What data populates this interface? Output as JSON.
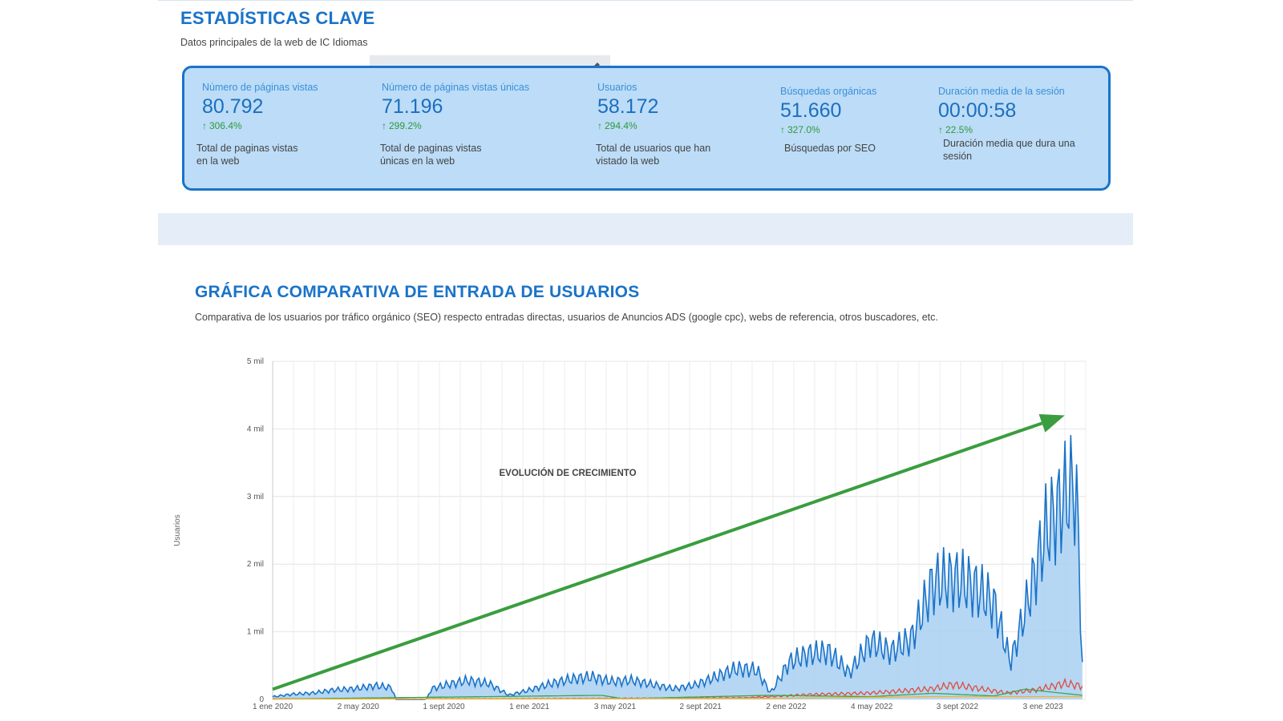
{
  "key_stats": {
    "title": "ESTADÍSTICAS CLAVE",
    "subtitle": "Datos principales de la web de IC Idiomas",
    "items": [
      {
        "label": "Número de páginas vistas",
        "value": "80.792",
        "delta": "306.4%",
        "desc1": "Total de paginas vistas",
        "desc2": "en la web"
      },
      {
        "label": "Número de páginas vistas únicas",
        "value": "71.196",
        "delta": "299.2%",
        "desc1": "Total de paginas vistas",
        "desc2": "únicas en la web"
      },
      {
        "label": "Usuarios",
        "value": "58.172",
        "delta": "294.4%",
        "desc1": "Total de usuarios que han",
        "desc2": "vistado la web"
      },
      {
        "label": "Búsquedas orgánicas",
        "value": "51.660",
        "delta": "327.0%",
        "desc1": "Búsquedas por SEO",
        "desc2": ""
      },
      {
        "label": "Duración media de la sesión",
        "value": "00:00:58",
        "delta": "22.5%",
        "desc1": "Duración media que dura una",
        "desc2": "sesión"
      }
    ],
    "colors": {
      "box_bg": "#bcdcf7",
      "box_border": "#1a73c8",
      "delta": "#2e9a3c"
    }
  },
  "chart_section": {
    "title": "GRÁFICA COMPARATIVA DE ENTRADA DE USUARIOS",
    "subtitle": "Comparativa de los usuarios por tráfico orgánico (SEO) respecto entradas directas, usuarios de Anuncios ADS (google cpc), webs de referencia, otros buscadores, etc."
  },
  "chart_data": {
    "type": "area",
    "ylabel": "Usuarios",
    "annotation": "EVOLUCIÓN DE CRECIMIENTO",
    "ylim": [
      0,
      5000
    ],
    "yticks": [
      0,
      1000,
      2000,
      3000,
      4000,
      5000
    ],
    "ytick_labels": [
      "0",
      "1 mil",
      "2 mil",
      "3 mil",
      "4 mil",
      "5 mil"
    ],
    "xticks": [
      "1 ene 2020",
      "2 may 2020",
      "1 sept 2020",
      "1 ene 2021",
      "3 may 2021",
      "2 sept 2021",
      "2 ene 2022",
      "4 may 2022",
      "3 sept 2022",
      "3 ene 2023"
    ],
    "xlim": [
      "2020-01-01",
      "2023-04-15"
    ],
    "grid": true,
    "trend_arrow": {
      "color": "#3a9d3f",
      "from": [
        "2020-01-01",
        150
      ],
      "to": [
        "2023-03-15",
        4200
      ]
    },
    "series": [
      {
        "color": "#1a73c8",
        "fill": "#a9d0f2",
        "points": [
          [
            "2020-01-01",
            50
          ],
          [
            "2020-02-01",
            100
          ],
          [
            "2020-03-01",
            120
          ],
          [
            "2020-04-01",
            180
          ],
          [
            "2020-05-01",
            200
          ],
          [
            "2020-06-01",
            260
          ],
          [
            "2020-06-25",
            220
          ],
          [
            "2020-07-01",
            0
          ],
          [
            "2020-08-15",
            0
          ],
          [
            "2020-08-22",
            200
          ],
          [
            "2020-09-15",
            280
          ],
          [
            "2020-10-15",
            360
          ],
          [
            "2020-11-15",
            300
          ],
          [
            "2020-12-15",
            80
          ],
          [
            "2021-01-15",
            180
          ],
          [
            "2021-02-15",
            300
          ],
          [
            "2021-03-15",
            380
          ],
          [
            "2021-04-15",
            430
          ],
          [
            "2021-05-15",
            340
          ],
          [
            "2021-06-15",
            360
          ],
          [
            "2021-07-15",
            280
          ],
          [
            "2021-08-15",
            200
          ],
          [
            "2021-09-15",
            270
          ],
          [
            "2021-10-15",
            420
          ],
          [
            "2021-11-15",
            580
          ],
          [
            "2021-12-15",
            560
          ],
          [
            "2022-01-05",
            120
          ],
          [
            "2022-02-01",
            700
          ],
          [
            "2022-03-01",
            860
          ],
          [
            "2022-04-01",
            900
          ],
          [
            "2022-05-01",
            500
          ],
          [
            "2022-06-01",
            1100
          ],
          [
            "2022-07-01",
            900
          ],
          [
            "2022-08-01",
            1150
          ],
          [
            "2022-09-01",
            2200
          ],
          [
            "2022-10-01",
            2300
          ],
          [
            "2022-11-01",
            2150
          ],
          [
            "2022-12-01",
            1800
          ],
          [
            "2022-12-25",
            700
          ],
          [
            "2023-01-15",
            1650
          ],
          [
            "2023-02-15",
            3200
          ],
          [
            "2023-03-20",
            3950
          ],
          [
            "2023-04-01",
            4000
          ],
          [
            "2023-04-10",
            700
          ]
        ]
      },
      {
        "color": "#e04b3c",
        "points": [
          [
            "2020-01-01",
            10
          ],
          [
            "2021-01-01",
            15
          ],
          [
            "2021-12-01",
            30
          ],
          [
            "2022-03-01",
            90
          ],
          [
            "2022-06-01",
            120
          ],
          [
            "2022-09-01",
            200
          ],
          [
            "2022-10-01",
            280
          ],
          [
            "2022-11-01",
            220
          ],
          [
            "2022-12-20",
            120
          ],
          [
            "2023-02-01",
            180
          ],
          [
            "2023-03-15",
            300
          ],
          [
            "2023-04-10",
            250
          ]
        ]
      },
      {
        "color": "#3aa64b",
        "points": [
          [
            "2020-01-01",
            5
          ],
          [
            "2021-05-01",
            60
          ],
          [
            "2021-06-01",
            10
          ],
          [
            "2022-01-01",
            60
          ],
          [
            "2022-06-01",
            40
          ],
          [
            "2022-09-01",
            90
          ],
          [
            "2022-12-01",
            50
          ],
          [
            "2023-01-15",
            150
          ],
          [
            "2023-04-10",
            60
          ]
        ]
      },
      {
        "color": "#f2b233",
        "points": [
          [
            "2020-01-01",
            5
          ],
          [
            "2021-01-01",
            10
          ],
          [
            "2022-01-01",
            15
          ],
          [
            "2022-09-01",
            40
          ],
          [
            "2023-04-10",
            40
          ]
        ]
      }
    ]
  }
}
